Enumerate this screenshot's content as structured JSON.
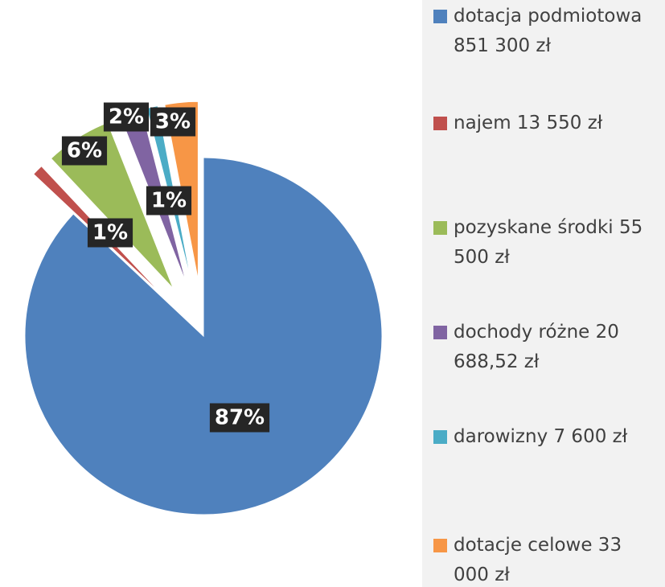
{
  "chart_data": {
    "type": "pie",
    "categories": [
      "dotacja podmiotowa 851 300 zł",
      "najem 13 550 zł",
      "pozyskane środki 55 500 zł",
      "dochody różne 20 688,52 zł",
      "darowizny 7 600 zł",
      "dotacje celowe 33 000 zł"
    ],
    "values": [
      87,
      1,
      6,
      2,
      1,
      3
    ],
    "value_labels": [
      "87%",
      "1%",
      "6%",
      "2%",
      "1%",
      "3%"
    ],
    "colors": [
      "#4f81bd",
      "#c0504d",
      "#9bbb59",
      "#8064a2",
      "#4bacc6",
      "#f79646"
    ]
  }
}
